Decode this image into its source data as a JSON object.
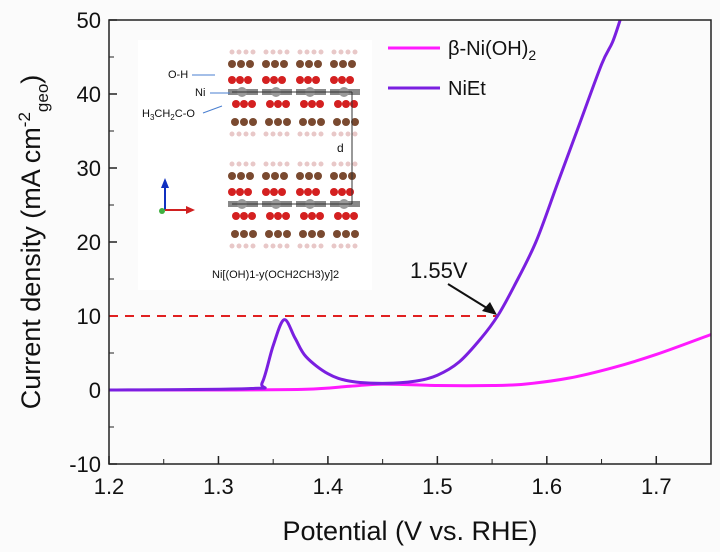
{
  "chart_data": {
    "type": "line",
    "xlabel": "Potential (V vs. RHE)",
    "ylabel": "Current density (mA cm",
    "ylabel_sup": "-2",
    "ylabel_sub": "geo",
    "ylabel_end": ")",
    "xlim": [
      1.2,
      1.75
    ],
    "ylim": [
      -10,
      50
    ],
    "xticks": [
      "1.2",
      "1.3",
      "1.4",
      "1.5",
      "1.6",
      "1.7"
    ],
    "yticks": [
      "-10",
      "0",
      "10",
      "20",
      "30",
      "40",
      "50"
    ],
    "grid": false,
    "legend": "top-right",
    "series": [
      {
        "name": "β-Ni(OH)2",
        "label_main": "β-Ni(OH)",
        "label_sub": "2",
        "color": "#ff1aff",
        "x": [
          1.2,
          1.3,
          1.38,
          1.42,
          1.45,
          1.5,
          1.55,
          1.58,
          1.62,
          1.66,
          1.7,
          1.75
        ],
        "y": [
          0,
          0,
          0.1,
          0.5,
          0.8,
          0.6,
          0.6,
          0.8,
          1.6,
          3,
          4.8,
          7.5
        ]
      },
      {
        "name": "NiEt",
        "color": "#7a1fe0",
        "x": [
          1.2,
          1.33,
          1.34,
          1.35,
          1.36,
          1.37,
          1.38,
          1.4,
          1.42,
          1.45,
          1.48,
          1.5,
          1.52,
          1.54,
          1.555,
          1.57,
          1.59,
          1.61,
          1.63,
          1.65,
          1.66,
          1.667
        ],
        "y": [
          0,
          0.2,
          1,
          6,
          9.5,
          7,
          4.5,
          2.2,
          1.2,
          0.9,
          1.2,
          2,
          3.8,
          7,
          10,
          14,
          20,
          28,
          36,
          44,
          47,
          50
        ]
      }
    ],
    "reference_line": {
      "y": 10,
      "color": "#e02020",
      "style": "dashed"
    },
    "annotation": {
      "text": "1.55V",
      "x": 1.555,
      "y": 10
    },
    "inset": {
      "labels": [
        "O-H",
        "Ni",
        "H3C H2C-O",
        "d"
      ],
      "formula": "Ni[(OH)1-y(OCH2CH3)y]2"
    }
  }
}
